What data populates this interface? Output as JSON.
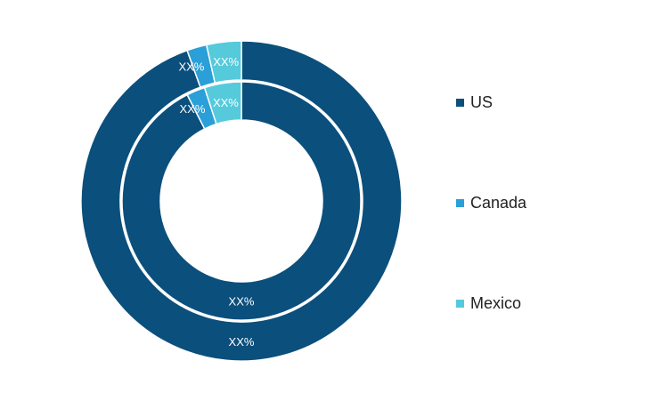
{
  "chart_data": {
    "type": "pie",
    "title": "",
    "categories": [
      "US",
      "Canada",
      "Mexico"
    ],
    "series": [
      {
        "values": [
          94.5,
          2.0,
          3.5
        ],
        "labels": [
          "XX%",
          "XX%",
          "XX%"
        ]
      },
      {
        "values": [
          92.5,
          2.5,
          5.0
        ],
        "labels": [
          "XX%",
          "XX%",
          "XX%"
        ]
      }
    ],
    "colors": [
      "#0b4f7c",
      "#2a9fd8",
      "#55cadb"
    ],
    "legend_position": "right"
  }
}
